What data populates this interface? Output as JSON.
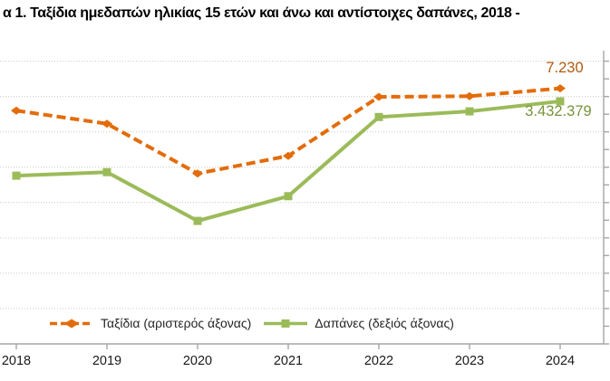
{
  "title": "α 1. Ταξίδια ημεδαπών ηλικίας 15 ετών και άνω και αντίστοιχες δαπάνες, 2018 -",
  "colors": {
    "trips_line": "#E36C09",
    "trips_label": "#B05A10",
    "expenses_line": "#9BBB59",
    "expenses_label": "#77933C",
    "gridline": "#C9C9C9",
    "axis": "#A6A6A6"
  },
  "legend": {
    "trips": "Ταξίδια (αριστερός άξονας)",
    "expenses": "Δαπάνες (δεξιός άξονας)"
  },
  "labels": {
    "trips_2024": "7.230",
    "expenses_2024": "3.432.379"
  },
  "x_axis": {
    "years": [
      "2018",
      "2019",
      "2020",
      "2021",
      "2022",
      "2023",
      "2024"
    ]
  },
  "chart_data": {
    "type": "line",
    "categories": [
      "2018",
      "2019",
      "2020",
      "2021",
      "2022",
      "2023",
      "2024"
    ],
    "series": [
      {
        "name": "Ταξίδια (αριστερός άξονας)",
        "axis": "left",
        "style": "dashed",
        "marker": "diamond",
        "color": "#E36C09",
        "values": [
          6600,
          6230,
          4820,
          5320,
          6990,
          7010,
          7230
        ],
        "values_estimated": true,
        "labeled_point": {
          "category": "2024",
          "value": 7230,
          "label": "7.230"
        }
      },
      {
        "name": "Δαπάνες (δεξιός άξονας)",
        "axis": "right",
        "style": "solid",
        "marker": "square",
        "color": "#9BBB59",
        "values": [
          2380000,
          2430000,
          1740000,
          2090000,
          3210000,
          3290000,
          3432379
        ],
        "values_estimated": true,
        "labeled_point": {
          "category": "2024",
          "value": 3432379,
          "label": "3.432.379"
        }
      }
    ],
    "left_axis": {
      "min": 0,
      "max": 8000,
      "gridline_step": 1000,
      "labels_visible": false
    },
    "right_axis": {
      "min": 0,
      "max": 4000000,
      "tick_step": 250000,
      "labels_visible": false
    },
    "grid": "horizontal-dotted",
    "legend_position": "bottom"
  }
}
